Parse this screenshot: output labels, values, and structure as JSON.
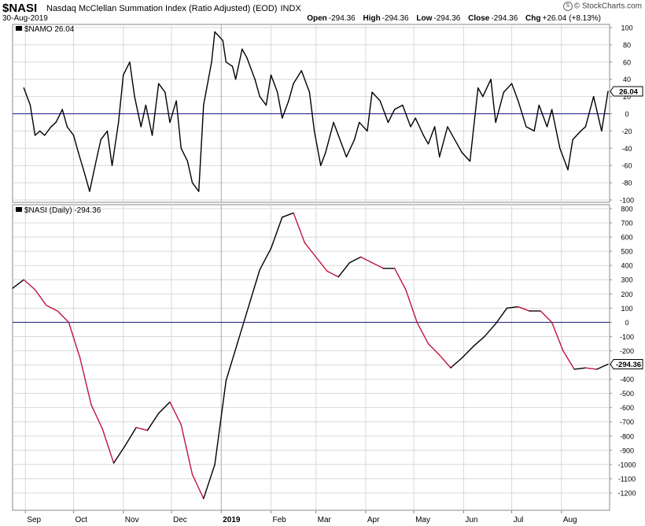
{
  "header": {
    "symbol": "$NASI",
    "name": "Nasdaq McClellan Summation Index (Ratio Adjusted) (EOD)",
    "exchange": "INDX",
    "date": "30-Aug-2019",
    "open_label": "Open",
    "open": "-294.36",
    "high_label": "High",
    "high": "-294.36",
    "low_label": "Low",
    "low": "-294.36",
    "close_label": "Close",
    "close": "-294.36",
    "chg_label": "Chg",
    "chg": "+26.04 (+8.13%)",
    "watermark": "© StockCharts.com"
  },
  "colors": {
    "up": "#000000",
    "down": "#c0143c",
    "zero": "#1a1a80",
    "grid": "#d8d8d8",
    "frame": "#888888"
  },
  "chart_data": [
    {
      "type": "line",
      "title": "$NAMO 26.04",
      "last_label": "26.04",
      "ylim": [
        -100,
        100
      ],
      "y_ticks": [
        100,
        80,
        60,
        40,
        20,
        0,
        -20,
        -40,
        -60,
        -80,
        -100
      ],
      "grid": true,
      "series": [
        {
          "name": "$NAMO",
          "x": [
            "2018-08-31",
            "2018-09-04",
            "2018-09-07",
            "2018-09-10",
            "2018-09-13",
            "2018-09-17",
            "2018-09-20",
            "2018-09-24",
            "2018-09-27",
            "2018-10-01",
            "2018-10-04",
            "2018-10-08",
            "2018-10-11",
            "2018-10-15",
            "2018-10-18",
            "2018-10-22",
            "2018-10-25",
            "2018-10-29",
            "2018-11-01",
            "2018-11-05",
            "2018-11-08",
            "2018-11-12",
            "2018-11-15",
            "2018-11-19",
            "2018-11-23",
            "2018-11-27",
            "2018-11-30",
            "2018-12-04",
            "2018-12-07",
            "2018-12-11",
            "2018-12-14",
            "2018-12-18",
            "2018-12-21",
            "2018-12-26",
            "2018-12-28",
            "2019-01-02",
            "2019-01-04",
            "2019-01-08",
            "2019-01-10",
            "2019-01-14",
            "2019-01-17",
            "2019-01-22",
            "2019-01-25",
            "2019-01-29",
            "2019-02-01",
            "2019-02-05",
            "2019-02-08",
            "2019-02-12",
            "2019-02-15",
            "2019-02-20",
            "2019-02-25",
            "2019-02-28",
            "2019-03-04",
            "2019-03-07",
            "2019-03-12",
            "2019-03-15",
            "2019-03-20",
            "2019-03-25",
            "2019-03-28",
            "2019-04-02",
            "2019-04-05",
            "2019-04-10",
            "2019-04-15",
            "2019-04-19",
            "2019-04-24",
            "2019-04-29",
            "2019-05-02",
            "2019-05-07",
            "2019-05-10",
            "2019-05-14",
            "2019-05-17",
            "2019-05-22",
            "2019-05-28",
            "2019-05-31",
            "2019-06-05",
            "2019-06-10",
            "2019-06-13",
            "2019-06-18",
            "2019-06-21",
            "2019-06-26",
            "2019-07-01",
            "2019-07-05",
            "2019-07-10",
            "2019-07-15",
            "2019-07-18",
            "2019-07-23",
            "2019-07-26",
            "2019-07-31",
            "2019-08-05",
            "2019-08-08",
            "2019-08-13",
            "2019-08-16",
            "2019-08-21",
            "2019-08-26",
            "2019-08-30"
          ],
          "values": [
            30,
            10,
            -25,
            -20,
            -25,
            -15,
            -10,
            5,
            -15,
            -25,
            -45,
            -70,
            -90,
            -55,
            -30,
            -20,
            -60,
            -10,
            45,
            60,
            20,
            -15,
            10,
            -25,
            35,
            25,
            -10,
            15,
            -40,
            -55,
            -80,
            -90,
            10,
            60,
            95,
            85,
            60,
            55,
            40,
            75,
            65,
            40,
            20,
            10,
            45,
            25,
            -5,
            15,
            35,
            50,
            25,
            -20,
            -60,
            -45,
            -10,
            -25,
            -50,
            -30,
            -10,
            -20,
            25,
            15,
            -10,
            5,
            10,
            -15,
            -5,
            -25,
            -35,
            -15,
            -50,
            -15,
            -35,
            -45,
            -55,
            30,
            20,
            40,
            -10,
            25,
            35,
            15,
            -15,
            -20,
            10,
            -15,
            5,
            -40,
            -65,
            -30,
            -20,
            -15,
            20,
            -20,
            26.04
          ]
        }
      ]
    },
    {
      "type": "line",
      "title": "$NASI (Daily) -294.36",
      "last_label": "-294.36",
      "ylim": [
        -1250,
        800
      ],
      "y_ticks": [
        800,
        700,
        600,
        500,
        400,
        300,
        200,
        100,
        0,
        -100,
        -200,
        -300,
        -400,
        -500,
        -600,
        -700,
        -800,
        -900,
        -1000,
        -1100,
        -1200
      ],
      "grid": true,
      "x_ticks": [
        {
          "label": "Sep",
          "date": "2018-09-01"
        },
        {
          "label": "Oct",
          "date": "2018-10-01"
        },
        {
          "label": "Nov",
          "date": "2018-11-01"
        },
        {
          "label": "Dec",
          "date": "2018-12-01"
        },
        {
          "label": "2019",
          "date": "2019-01-01"
        },
        {
          "label": "Feb",
          "date": "2019-02-01"
        },
        {
          "label": "Mar",
          "date": "2019-03-01"
        },
        {
          "label": "Apr",
          "date": "2019-04-01"
        },
        {
          "label": "May",
          "date": "2019-05-01"
        },
        {
          "label": "Jun",
          "date": "2019-06-01"
        },
        {
          "label": "Jul",
          "date": "2019-07-01"
        },
        {
          "label": "Aug",
          "date": "2019-08-01"
        }
      ],
      "series": [
        {
          "name": "$NASI",
          "x": [
            "2018-08-24",
            "2018-08-31",
            "2018-09-07",
            "2018-09-14",
            "2018-09-21",
            "2018-09-28",
            "2018-10-05",
            "2018-10-12",
            "2018-10-19",
            "2018-10-26",
            "2018-11-02",
            "2018-11-09",
            "2018-11-16",
            "2018-11-23",
            "2018-11-30",
            "2018-12-07",
            "2018-12-14",
            "2018-12-21",
            "2018-12-28",
            "2019-01-04",
            "2019-01-11",
            "2019-01-18",
            "2019-01-25",
            "2019-02-01",
            "2019-02-08",
            "2019-02-15",
            "2019-02-22",
            "2019-03-01",
            "2019-03-08",
            "2019-03-15",
            "2019-03-22",
            "2019-03-29",
            "2019-04-05",
            "2019-04-12",
            "2019-04-19",
            "2019-04-26",
            "2019-05-03",
            "2019-05-10",
            "2019-05-17",
            "2019-05-24",
            "2019-05-31",
            "2019-06-07",
            "2019-06-14",
            "2019-06-21",
            "2019-06-28",
            "2019-07-05",
            "2019-07-12",
            "2019-07-19",
            "2019-07-26",
            "2019-08-02",
            "2019-08-09",
            "2019-08-16",
            "2019-08-23",
            "2019-08-30"
          ],
          "values": [
            240,
            300,
            230,
            120,
            80,
            0,
            -250,
            -580,
            -750,
            -990,
            -870,
            -740,
            -760,
            -640,
            -560,
            -720,
            -1070,
            -1240,
            -1000,
            -410,
            -150,
            110,
            370,
            520,
            740,
            770,
            560,
            460,
            360,
            320,
            420,
            460,
            420,
            380,
            380,
            230,
            0,
            -150,
            -230,
            -320,
            -250,
            -170,
            -100,
            -10,
            100,
            110,
            80,
            80,
            0,
            -200,
            -330,
            -320,
            -330,
            -294.36
          ]
        }
      ]
    }
  ]
}
